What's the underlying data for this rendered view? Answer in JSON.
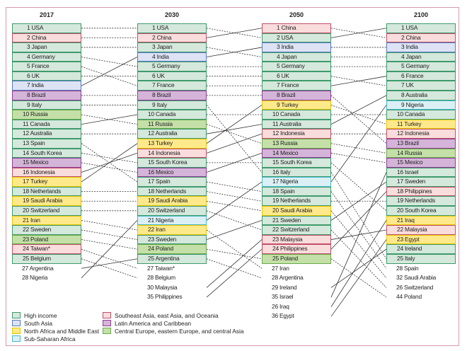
{
  "regions": {
    "H": {
      "label": "High income",
      "fill": "#d5e8dc",
      "border": "#3f9a6c"
    },
    "S": {
      "label": "South Asia",
      "fill": "#dde3f5",
      "border": "#5a7cc0"
    },
    "N": {
      "label": "North Africa and Middle East",
      "fill": "#ffe98a",
      "border": "#e6c600"
    },
    "A": {
      "label": "Sub-Saharan Africa",
      "fill": "#dbf0f5",
      "border": "#4ab8cc"
    },
    "E": {
      "label": "Southeast Asia, east Asia, and Oceania",
      "fill": "#f9dcdc",
      "border": "#c0506a"
    },
    "L": {
      "label": "Latin America and Caribbean",
      "fill": "#d4b4d8",
      "border": "#8e3c94"
    },
    "C": {
      "label": "Central Europe, eastern Europe, and central Asia",
      "fill": "#c4e0a8",
      "border": "#6aaa4a"
    }
  },
  "legend_order": [
    [
      "H",
      "S",
      "N",
      "A"
    ],
    [
      "E",
      "L",
      "C"
    ]
  ],
  "columns": [
    {
      "year": "2017",
      "ranked": [
        [
          "1",
          "USA",
          "H"
        ],
        [
          "2",
          "China",
          "E"
        ],
        [
          "3",
          "Japan",
          "H"
        ],
        [
          "4",
          "Germany",
          "H"
        ],
        [
          "5",
          "France",
          "H"
        ],
        [
          "6",
          "UK",
          "H"
        ],
        [
          "7",
          "India",
          "S"
        ],
        [
          "8",
          "Brazil",
          "L"
        ],
        [
          "9",
          "Italy",
          "H"
        ],
        [
          "10",
          "Russia",
          "C"
        ],
        [
          "11",
          "Canada",
          "H"
        ],
        [
          "12",
          "Australia",
          "H"
        ],
        [
          "13",
          "Spain",
          "H"
        ],
        [
          "14",
          "South Korea",
          "H"
        ],
        [
          "15",
          "Mexico",
          "L"
        ],
        [
          "16",
          "Indonesia",
          "E"
        ],
        [
          "17",
          "Turkey",
          "N"
        ],
        [
          "18",
          "Netherlands",
          "H"
        ],
        [
          "19",
          "Saudi Arabia",
          "N"
        ],
        [
          "20",
          "Switzerland",
          "H"
        ],
        [
          "21",
          "Iran",
          "N"
        ],
        [
          "22",
          "Sweden",
          "H"
        ],
        [
          "23",
          "Poland",
          "C"
        ],
        [
          "24",
          "Taiwan*",
          "E"
        ],
        [
          "25",
          "Belgium",
          "H"
        ]
      ],
      "others": [
        [
          "27",
          "Argentina"
        ],
        [
          "28",
          "Nigeria"
        ]
      ]
    },
    {
      "year": "2030",
      "ranked": [
        [
          "1",
          "USA",
          "H"
        ],
        [
          "2",
          "China",
          "E"
        ],
        [
          "3",
          "Japan",
          "H"
        ],
        [
          "4",
          "India",
          "S"
        ],
        [
          "5",
          "Germany",
          "H"
        ],
        [
          "6",
          "UK",
          "H"
        ],
        [
          "7",
          "France",
          "H"
        ],
        [
          "8",
          "Brazil",
          "L"
        ],
        [
          "9",
          "Italy",
          "H"
        ],
        [
          "10",
          "Canada",
          "H"
        ],
        [
          "11",
          "Russia",
          "C"
        ],
        [
          "12",
          "Australia",
          "H"
        ],
        [
          "13",
          "Turkey",
          "N"
        ],
        [
          "14",
          "Indonesia",
          "E"
        ],
        [
          "15",
          "South Korea",
          "H"
        ],
        [
          "16",
          "Mexico",
          "L"
        ],
        [
          "17",
          "Spain",
          "H"
        ],
        [
          "18",
          "Netherlands",
          "H"
        ],
        [
          "19",
          "Saudi Arabia",
          "N"
        ],
        [
          "20",
          "Switzerland",
          "H"
        ],
        [
          "21",
          "Nigeria",
          "A"
        ],
        [
          "22",
          "Iran",
          "N"
        ],
        [
          "23",
          "Sweden",
          "H"
        ],
        [
          "24",
          "Poland",
          "C"
        ],
        [
          "25",
          "Argentina",
          "H"
        ]
      ],
      "others": [
        [
          "27",
          "Taiwan*"
        ],
        [
          "28",
          "Belgium"
        ],
        [
          "30",
          "Malaysia"
        ],
        [
          "35",
          "Philippines"
        ]
      ]
    },
    {
      "year": "2050",
      "ranked": [
        [
          "1",
          "China",
          "E"
        ],
        [
          "2",
          "USA",
          "H"
        ],
        [
          "3",
          "India",
          "S"
        ],
        [
          "4",
          "Japan",
          "H"
        ],
        [
          "5",
          "Germany",
          "H"
        ],
        [
          "6",
          "UK",
          "H"
        ],
        [
          "7",
          "France",
          "H"
        ],
        [
          "8",
          "Brazil",
          "L"
        ],
        [
          "9",
          "Turkey",
          "N"
        ],
        [
          "10",
          "Canada",
          "H"
        ],
        [
          "11",
          "Australia",
          "H"
        ],
        [
          "12",
          "Indonesia",
          "E"
        ],
        [
          "13",
          "Russia",
          "C"
        ],
        [
          "14",
          "Mexico",
          "L"
        ],
        [
          "15",
          "South Korea",
          "H"
        ],
        [
          "16",
          "Italy",
          "H"
        ],
        [
          "17",
          "Nigeria",
          "A"
        ],
        [
          "18",
          "Spain",
          "H"
        ],
        [
          "19",
          "Netherlands",
          "H"
        ],
        [
          "20",
          "Saudi Arabia",
          "N"
        ],
        [
          "21",
          "Sweden",
          "H"
        ],
        [
          "22",
          "Switzerland",
          "H"
        ],
        [
          "23",
          "Malaysia",
          "E"
        ],
        [
          "24",
          "Philippines",
          "E"
        ],
        [
          "25",
          "Poland",
          "C"
        ]
      ],
      "others": [
        [
          "27",
          "Iran"
        ],
        [
          "28",
          "Argentina"
        ],
        [
          "29",
          "Ireland"
        ],
        [
          "35",
          "Israel"
        ],
        [
          "26",
          "Iraq"
        ],
        [
          "36",
          "Egypt"
        ]
      ]
    },
    {
      "year": "2100",
      "ranked": [
        [
          "1",
          "USA",
          "H"
        ],
        [
          "2",
          "China",
          "E"
        ],
        [
          "3",
          "India",
          "S"
        ],
        [
          "4",
          "Japan",
          "H"
        ],
        [
          "5",
          "Germany",
          "H"
        ],
        [
          "6",
          "France",
          "H"
        ],
        [
          "7",
          "UK",
          "H"
        ],
        [
          "8",
          "Australia",
          "H"
        ],
        [
          "9",
          "Nigeria",
          "A"
        ],
        [
          "10",
          "Canada",
          "H"
        ],
        [
          "11",
          "Turkey",
          "N"
        ],
        [
          "12",
          "Indonesia",
          "E"
        ],
        [
          "13",
          "Brazil",
          "L"
        ],
        [
          "14",
          "Russia",
          "C"
        ],
        [
          "15",
          "Mexico",
          "L"
        ],
        [
          "16",
          "Israel",
          "H"
        ],
        [
          "17",
          "Sweden",
          "H"
        ],
        [
          "18",
          "Philippines",
          "E"
        ],
        [
          "19",
          "Netherlands",
          "H"
        ],
        [
          "20",
          "South Korea",
          "H"
        ],
        [
          "21",
          "Iraq",
          "N"
        ],
        [
          "22",
          "Malaysia",
          "E"
        ],
        [
          "23",
          "Egypt",
          "N"
        ],
        [
          "24",
          "Ireland",
          "H"
        ],
        [
          "25",
          "Italy",
          "H"
        ]
      ],
      "others": [
        [
          "28",
          "Spain"
        ],
        [
          "32",
          "Saudi Arabia"
        ],
        [
          "26",
          "Switzerland"
        ],
        [
          "44",
          "Poland"
        ]
      ]
    }
  ]
}
